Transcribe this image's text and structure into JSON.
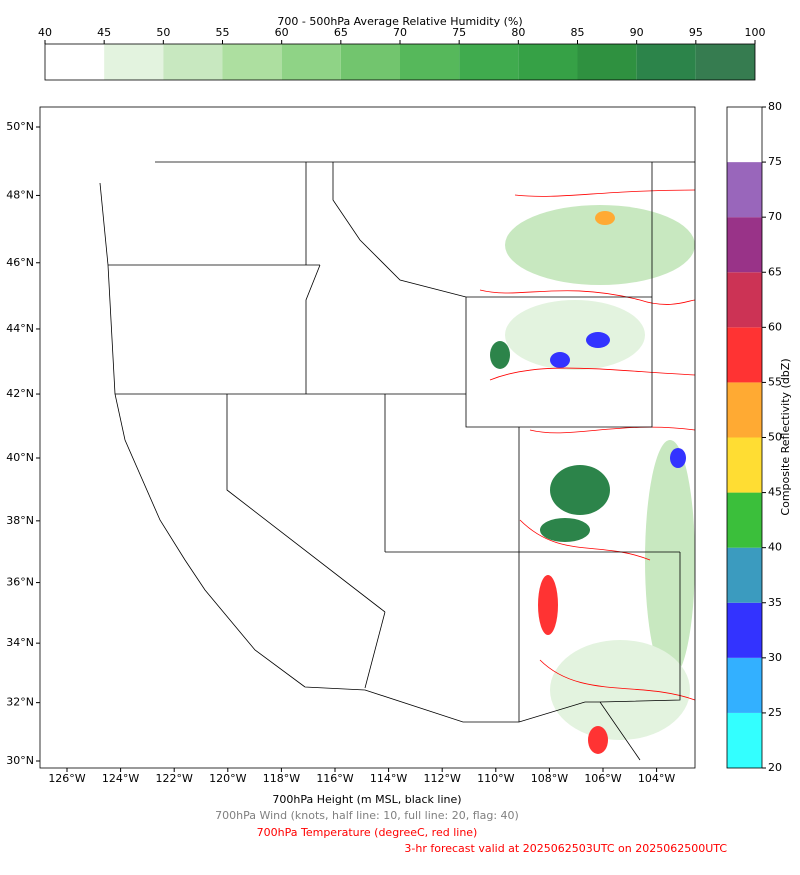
{
  "humidity_colorbar": {
    "title": "700 - 500hPa Average Relative Humidity (%)",
    "ticks": [
      40,
      45,
      50,
      55,
      60,
      65,
      70,
      75,
      80,
      85,
      90,
      95,
      100
    ],
    "colors": [
      "#ffffff",
      "#e3f3df",
      "#c8e8c0",
      "#addfa0",
      "#8fd386",
      "#72c56e",
      "#56b85b",
      "#40ab4e",
      "#36a146",
      "#2f9140",
      "#2c844a",
      "#367c50"
    ]
  },
  "reflectivity_colorbar": {
    "label": "Composite Reflectivity (dbZ)",
    "ticks": [
      20,
      25,
      30,
      35,
      40,
      45,
      50,
      55,
      60,
      65,
      70,
      75,
      80
    ],
    "colors": [
      "#33ffff",
      "#33b0ff",
      "#3333ff",
      "#3b9bbf",
      "#3bbf3b",
      "#ffdd33",
      "#ffaa33",
      "#ff3333",
      "#cc3355",
      "#993388",
      "#9966bb",
      "#ffffff"
    ]
  },
  "map": {
    "lat_ticks": [
      {
        "value": 50,
        "label": "50°N"
      },
      {
        "value": 48,
        "label": "48°N"
      },
      {
        "value": 46,
        "label": "46°N"
      },
      {
        "value": 44,
        "label": "44°N"
      },
      {
        "value": 42,
        "label": "42°N"
      },
      {
        "value": 40,
        "label": "40°N"
      },
      {
        "value": 38,
        "label": "38°N"
      },
      {
        "value": 36,
        "label": "36°N"
      },
      {
        "value": 34,
        "label": "34°N"
      },
      {
        "value": 32,
        "label": "32°N"
      },
      {
        "value": 30,
        "label": "30°N"
      }
    ],
    "lon_ticks": [
      {
        "value": -126,
        "label": "126°W"
      },
      {
        "value": -124,
        "label": "124°W"
      },
      {
        "value": -122,
        "label": "122°W"
      },
      {
        "value": -120,
        "label": "120°W"
      },
      {
        "value": -118,
        "label": "118°W"
      },
      {
        "value": -116,
        "label": "116°W"
      },
      {
        "value": -114,
        "label": "114°W"
      },
      {
        "value": -112,
        "label": "112°W"
      },
      {
        "value": -110,
        "label": "110°W"
      },
      {
        "value": -108,
        "label": "108°W"
      },
      {
        "value": -106,
        "label": "106°W"
      },
      {
        "value": -104,
        "label": "104°W"
      }
    ]
  },
  "captions": [
    {
      "text": "700hPa Height (m MSL, black line)",
      "color": "#000000"
    },
    {
      "text": "700hPa Wind (knots, half line: 10, full line: 20, flag: 40)",
      "color": "#808080"
    },
    {
      "text": "700hPa Temperature (degreeC, red line)",
      "color": "#ff0000"
    },
    {
      "text": "3-hr forecast valid at 2025062503UTC on 2025062500UTC",
      "color": "#ff0000"
    }
  ]
}
